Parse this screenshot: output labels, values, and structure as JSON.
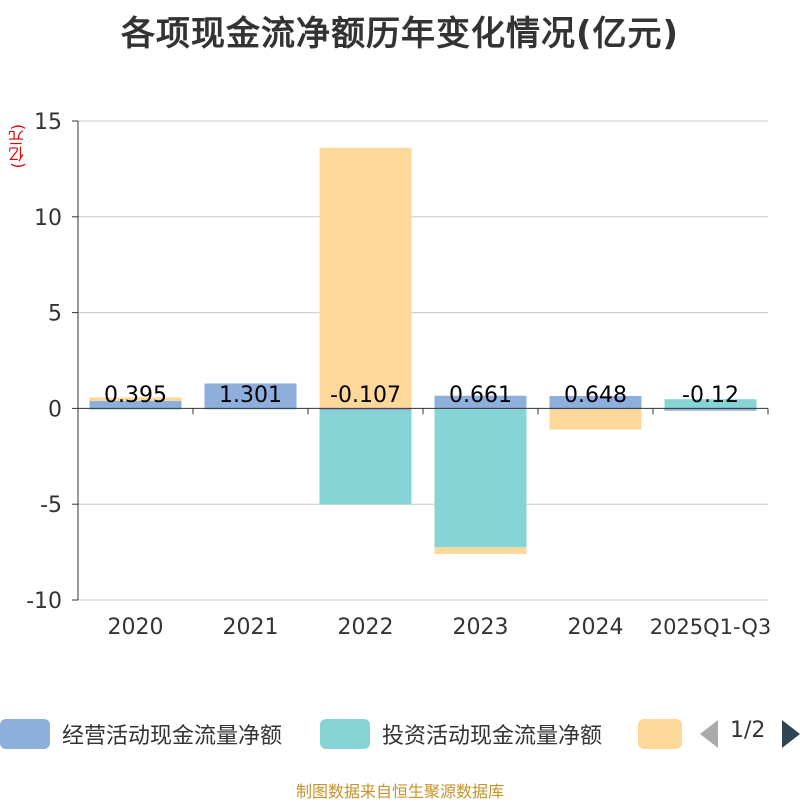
{
  "chart_data": {
    "type": "bar",
    "stacked": true,
    "title": "各项现金流净额历年变化情况(亿元)",
    "ylabel": "(亿元)",
    "xlabel": "",
    "categories": [
      "2020",
      "2021",
      "2022",
      "2023",
      "2024",
      "2025Q1-Q3"
    ],
    "ylim": [
      -10,
      15
    ],
    "yticks": [
      15,
      10,
      5,
      0,
      -5,
      -10
    ],
    "grid": true,
    "series": [
      {
        "name": "经营活动现金流量净额",
        "color": "#8eaedc",
        "values": [
          0.395,
          1.301,
          -0.107,
          0.661,
          0.648,
          -0.12
        ],
        "labels": [
          "0.395",
          "1.301",
          "-0.107",
          "0.661",
          "0.648",
          "-0.12"
        ]
      },
      {
        "name": "投资活动现金流量净额",
        "color": "#86d4d6",
        "values": [
          -0.06,
          -0.05,
          -4.9,
          -7.25,
          -0.05,
          0.48
        ]
      },
      {
        "name": "",
        "color": "#fed898",
        "values": [
          0.18,
          0.0,
          13.6,
          -0.35,
          -1.05,
          0.0
        ]
      }
    ],
    "legend": {
      "position": "bottom",
      "page": "1/2"
    }
  },
  "source_note": "制图数据来自恒生聚源数据库"
}
